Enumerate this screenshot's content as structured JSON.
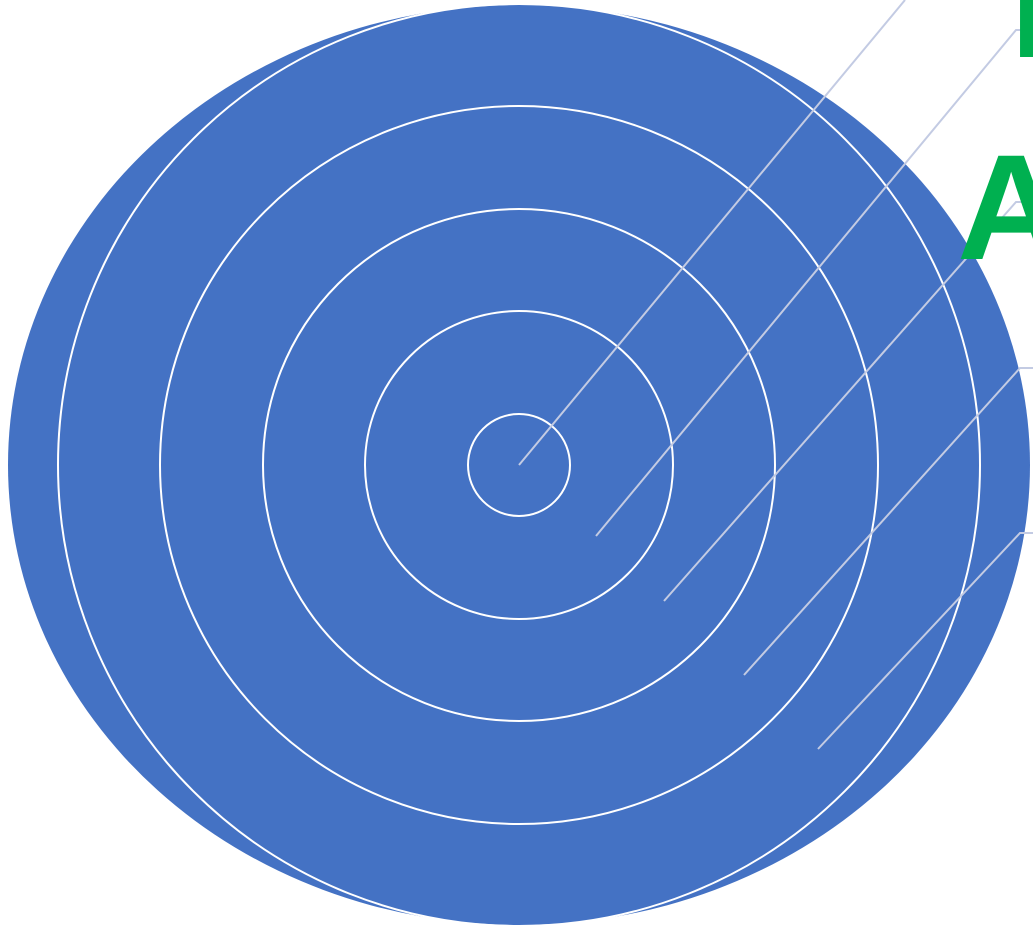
{
  "diagram": {
    "rings": [
      {
        "id": 1
      },
      {
        "id": 2
      },
      {
        "id": 3
      },
      {
        "id": 4
      },
      {
        "id": 5
      }
    ],
    "leaders": [
      {
        "ring": 1
      },
      {
        "ring": 2
      },
      {
        "ring": 3
      },
      {
        "ring": 4
      },
      {
        "ring": 5
      }
    ],
    "cutoff_text": {
      "top": "I",
      "middle": "A"
    },
    "colors": {
      "background_disc": "#4472c4",
      "ring_stroke": "#ffffff",
      "leader_line": "#c3cbe3",
      "title_text": "#00b050",
      "page_background": "#ffffff"
    }
  }
}
